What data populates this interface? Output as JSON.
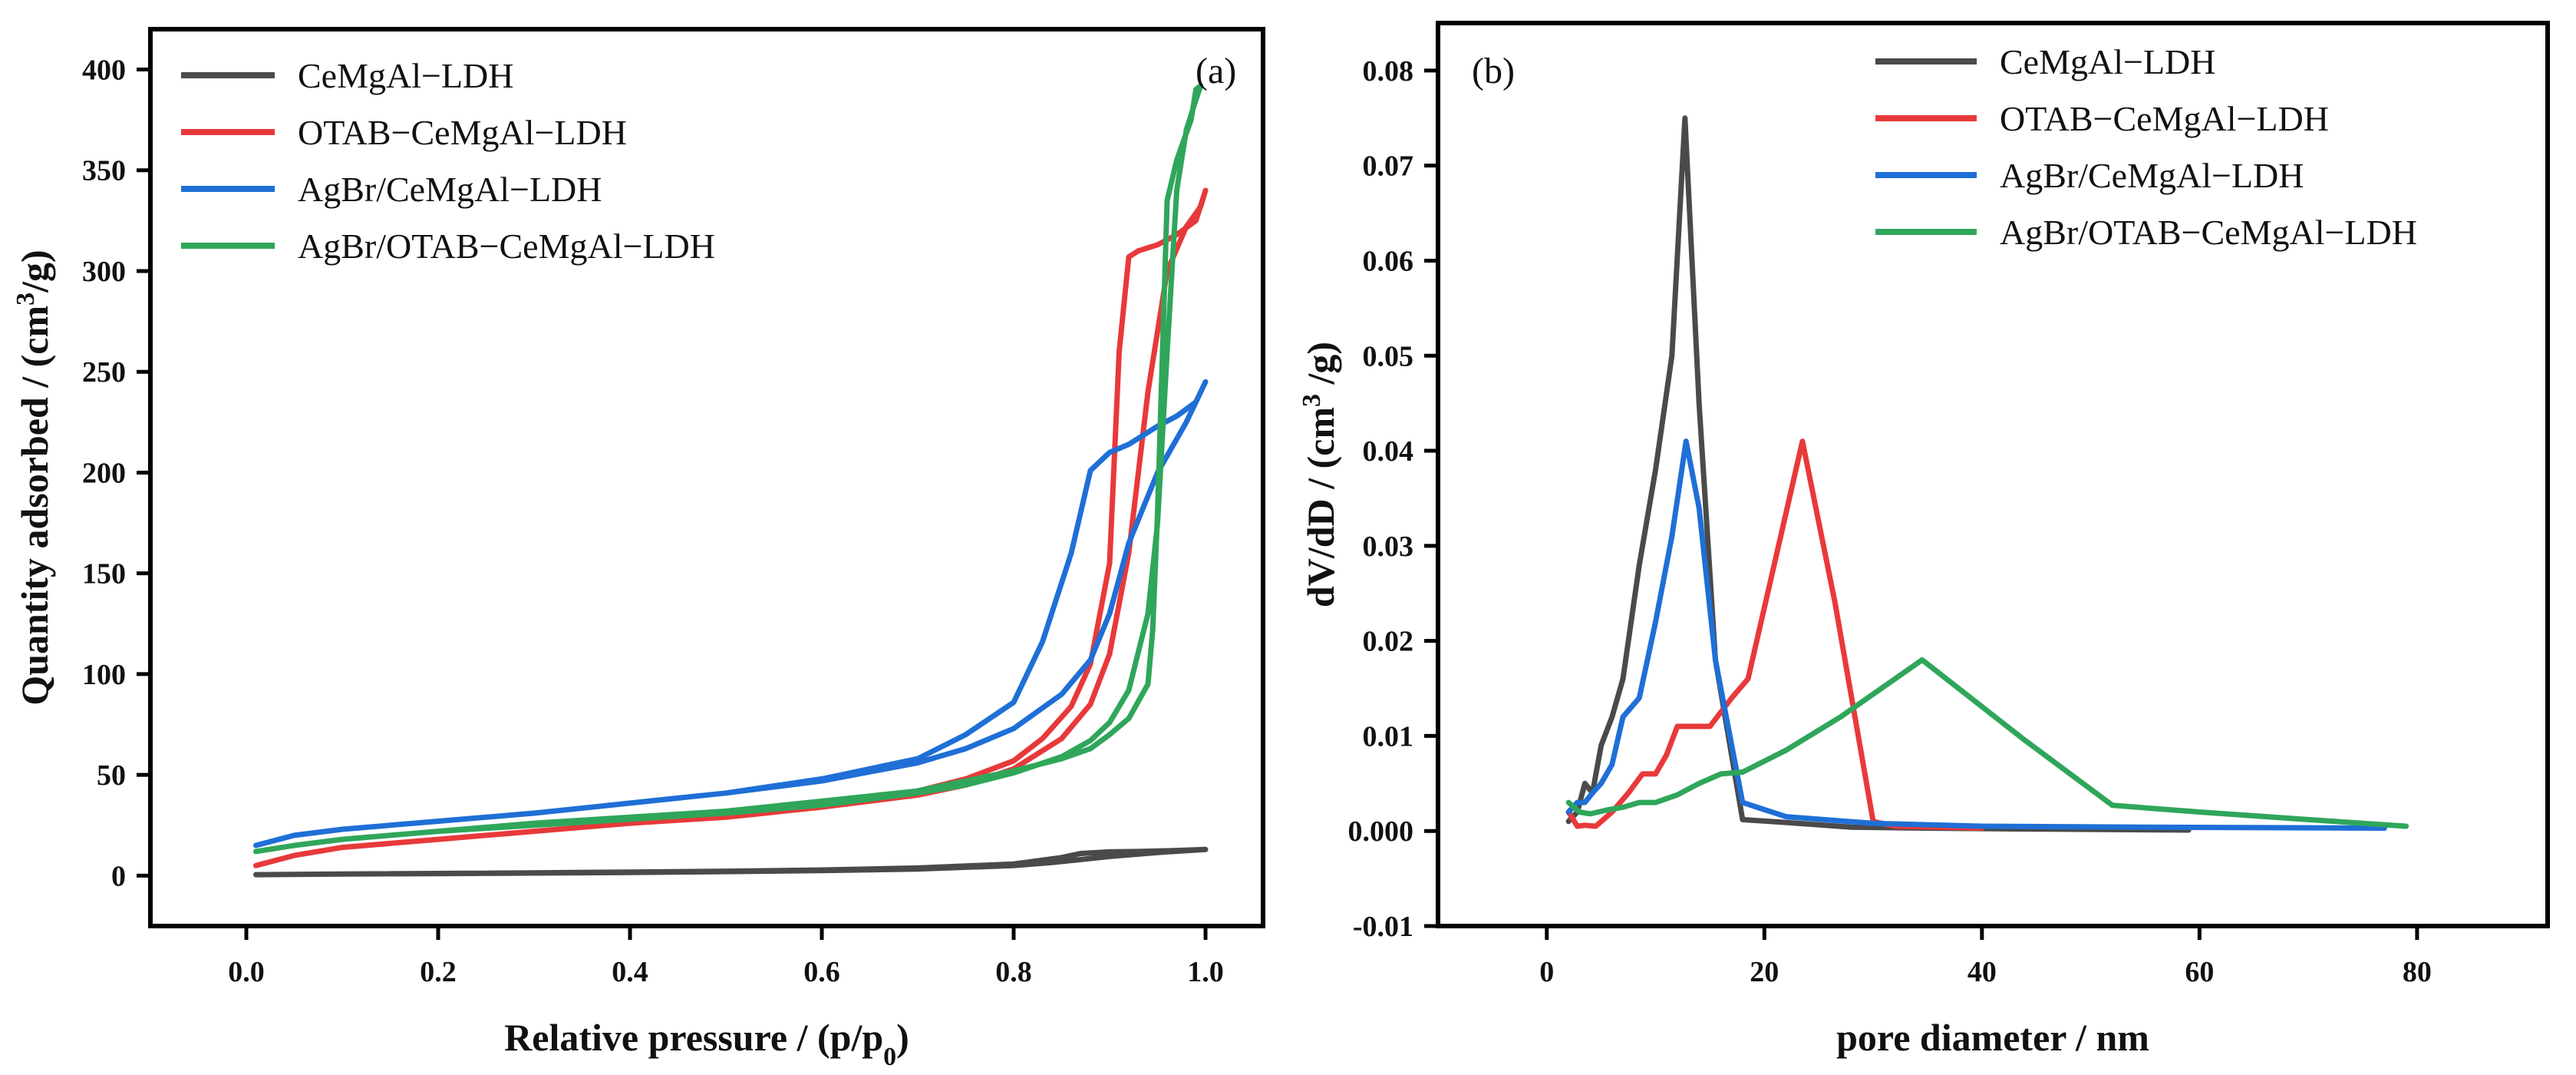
{
  "colors": {
    "CeMgAl-LDH": "#4a4a4a",
    "OTAB-CeMgAl-LDH": "#e8393a",
    "AgBr/CeMgAl-LDH": "#1f6fd6",
    "AgBr/OTAB-CeMgAl-LDH": "#2fa65a",
    "axis": "#000000"
  },
  "chart_data": [
    {
      "type": "line",
      "panel": "(a)",
      "title": "",
      "xlabel": "Relative pressure / (p/p",
      "xlabel_sub": "0",
      "xlabel_end": ")",
      "ylabel_main": "Quantity adsorbed / (cm",
      "ylabel_sup": "3",
      "ylabel_end": "/g)",
      "xlim": [
        -0.1,
        1.06
      ],
      "ylim": [
        -25,
        420
      ],
      "xticks": [
        0.0,
        0.2,
        0.4,
        0.6,
        0.8,
        1.0
      ],
      "xtick_labels": [
        "0.0",
        "0.2",
        "0.4",
        "0.6",
        "0.8",
        "1.0"
      ],
      "yticks": [
        0,
        50,
        100,
        150,
        200,
        250,
        300,
        350,
        400
      ],
      "ytick_labels": [
        "0",
        "50",
        "100",
        "150",
        "200",
        "250",
        "300",
        "350",
        "400"
      ],
      "legend_position": "top-left",
      "series": [
        {
          "name": "CeMgAl−LDH",
          "key": "CeMgAl-LDH",
          "x": [
            0.01,
            0.1,
            0.2,
            0.3,
            0.4,
            0.5,
            0.6,
            0.7,
            0.8,
            0.84,
            0.86,
            0.9,
            0.95,
            1.0,
            0.97,
            0.93,
            0.9,
            0.87,
            0.85,
            0.8,
            0.7,
            0.6,
            0.5,
            0.4,
            0.3,
            0.2,
            0.1,
            0.01
          ],
          "y": [
            0.5,
            0.8,
            1.0,
            1.3,
            1.6,
            2.0,
            2.5,
            3.3,
            5.0,
            6.5,
            7.5,
            9.5,
            11.5,
            13.0,
            12.5,
            12.0,
            11.8,
            11.0,
            9.0,
            5.8,
            3.8,
            2.8,
            2.2,
            1.8,
            1.4,
            1.1,
            0.8,
            0.5
          ]
        },
        {
          "name": "OTAB−CeMgAl−LDH",
          "key": "OTAB-CeMgAl-LDH",
          "x": [
            0.01,
            0.05,
            0.1,
            0.2,
            0.3,
            0.4,
            0.5,
            0.6,
            0.7,
            0.75,
            0.8,
            0.85,
            0.88,
            0.9,
            0.92,
            0.94,
            0.96,
            0.98,
            0.995,
            1.0,
            0.99,
            0.97,
            0.95,
            0.93,
            0.92,
            0.91,
            0.9,
            0.88,
            0.86,
            0.83,
            0.8,
            0.75,
            0.7,
            0.6,
            0.5,
            0.4,
            0.3,
            0.2,
            0.1,
            0.05,
            0.01
          ],
          "y": [
            5,
            10,
            14,
            18,
            22,
            26,
            29,
            34,
            40,
            45,
            53,
            68,
            85,
            110,
            160,
            240,
            300,
            322,
            332,
            340,
            325,
            318,
            313,
            310,
            307,
            260,
            155,
            105,
            84,
            68,
            57,
            48,
            42,
            35,
            30,
            26,
            22,
            18,
            14,
            10,
            5
          ]
        },
        {
          "name": "AgBr/CeMgAl−LDH",
          "key": "AgBr/CeMgAl-LDH",
          "x": [
            0.01,
            0.05,
            0.1,
            0.2,
            0.3,
            0.4,
            0.5,
            0.6,
            0.7,
            0.75,
            0.8,
            0.85,
            0.88,
            0.9,
            0.92,
            0.95,
            0.98,
            1.0,
            0.99,
            0.97,
            0.95,
            0.92,
            0.9,
            0.88,
            0.86,
            0.83,
            0.8,
            0.75,
            0.7,
            0.6,
            0.5,
            0.4,
            0.3,
            0.2,
            0.1,
            0.05,
            0.01
          ],
          "y": [
            15,
            20,
            23,
            27,
            31,
            36,
            41,
            47,
            56,
            63,
            73,
            90,
            107,
            130,
            165,
            200,
            225,
            245,
            235,
            228,
            223,
            214,
            210,
            201,
            160,
            116,
            86,
            70,
            58,
            48,
            41,
            36,
            31,
            27,
            23,
            20,
            15
          ]
        },
        {
          "name": "AgBr/OTAB−CeMgAl−LDH",
          "key": "AgBr/OTAB-CeMgAl-LDH",
          "x": [
            0.01,
            0.05,
            0.1,
            0.2,
            0.3,
            0.4,
            0.5,
            0.6,
            0.7,
            0.75,
            0.8,
            0.85,
            0.88,
            0.9,
            0.92,
            0.94,
            0.95,
            0.96,
            0.97,
            0.98,
            0.99,
            0.995,
            0.99,
            0.985,
            0.97,
            0.96,
            0.95,
            0.945,
            0.94,
            0.92,
            0.9,
            0.88,
            0.85,
            0.8,
            0.75,
            0.7,
            0.6,
            0.5,
            0.4,
            0.3,
            0.2,
            0.1,
            0.05,
            0.01
          ],
          "y": [
            12,
            15,
            18,
            22,
            25,
            28,
            31,
            35,
            41,
            45,
            51,
            59,
            67,
            76,
            92,
            130,
            175,
            260,
            340,
            370,
            385,
            392,
            390,
            375,
            355,
            335,
            180,
            122,
            95,
            78,
            70,
            63,
            58,
            52,
            47,
            42,
            37,
            32,
            29,
            26,
            22,
            18,
            15,
            12
          ]
        }
      ]
    },
    {
      "type": "line",
      "panel": "(b)",
      "title": "",
      "xlabel": "pore diameter / nm",
      "ylabel_main": "dV/dD / (cm",
      "ylabel_sup": "3",
      "ylabel_end": " /g)",
      "xlim": [
        -10,
        92
      ],
      "ylim": [
        -0.01,
        0.085
      ],
      "xticks": [
        0,
        20,
        40,
        60,
        80
      ],
      "xtick_labels": [
        "0",
        "20",
        "40",
        "60",
        "80"
      ],
      "yticks": [
        -0.01,
        0.0,
        0.01,
        0.02,
        0.03,
        0.04,
        0.05,
        0.06,
        0.07,
        0.08
      ],
      "ytick_labels": [
        "-0.01",
        "0.000",
        "0.01",
        "0.02",
        "0.03",
        "0.04",
        "0.05",
        "0.06",
        "0.07",
        "0.08"
      ],
      "legend_position": "top-right",
      "series": [
        {
          "name": "CeMgAl−LDH",
          "key": "CeMgAl-LDH",
          "x": [
            2.0,
            2.8,
            3.5,
            4.2,
            5.0,
            6.0,
            7.0,
            8.5,
            10.0,
            11.5,
            12.7,
            14.0,
            15.5,
            18.0,
            22.0,
            28.0,
            35.0,
            45.0,
            59.0
          ],
          "y": [
            0.001,
            0.002,
            0.005,
            0.004,
            0.009,
            0.012,
            0.016,
            0.028,
            0.038,
            0.05,
            0.075,
            0.045,
            0.018,
            0.0012,
            0.0009,
            0.0004,
            0.0003,
            0.0002,
            0.0001
          ]
        },
        {
          "name": "OTAB−CeMgAl−LDH",
          "key": "OTAB-CeMgAl-LDH",
          "x": [
            2.0,
            2.8,
            3.5,
            4.5,
            6.0,
            7.5,
            8.8,
            10.0,
            11.0,
            12.0,
            13.5,
            15.0,
            17.0,
            18.5,
            20.5,
            23.5,
            26.5,
            30.0,
            32.0,
            40.0
          ],
          "y": [
            0.002,
            0.0005,
            0.0006,
            0.0005,
            0.002,
            0.004,
            0.006,
            0.006,
            0.008,
            0.011,
            0.011,
            0.011,
            0.014,
            0.016,
            0.026,
            0.041,
            0.024,
            0.001,
            0.0005,
            0.0003
          ]
        },
        {
          "name": "AgBr/CeMgAl−LDH",
          "key": "AgBr/CeMgAl-LDH",
          "x": [
            2.0,
            2.8,
            3.5,
            4.2,
            5.0,
            6.0,
            7.0,
            8.5,
            10.0,
            11.5,
            12.8,
            14.0,
            15.5,
            18.0,
            22.0,
            30.0,
            40.0,
            55.0,
            77.0
          ],
          "y": [
            0.002,
            0.003,
            0.003,
            0.004,
            0.005,
            0.007,
            0.012,
            0.014,
            0.022,
            0.031,
            0.041,
            0.034,
            0.018,
            0.003,
            0.0015,
            0.0008,
            0.0005,
            0.0004,
            0.0003
          ]
        },
        {
          "name": "AgBr/OTAB−CeMgAl−LDH",
          "key": "AgBr/OTAB-CeMgAl-LDH",
          "x": [
            2.0,
            3.0,
            4.0,
            5.5,
            7.0,
            8.5,
            10.0,
            12.0,
            14.0,
            16.0,
            18.0,
            22.0,
            27.0,
            34.5,
            44.0,
            52.0,
            60.0,
            70.0,
            79.0
          ],
          "y": [
            0.003,
            0.002,
            0.0018,
            0.0022,
            0.0025,
            0.003,
            0.003,
            0.0038,
            0.005,
            0.006,
            0.0062,
            0.0085,
            0.012,
            0.018,
            0.0095,
            0.0027,
            0.002,
            0.0012,
            0.0005
          ]
        }
      ]
    }
  ]
}
